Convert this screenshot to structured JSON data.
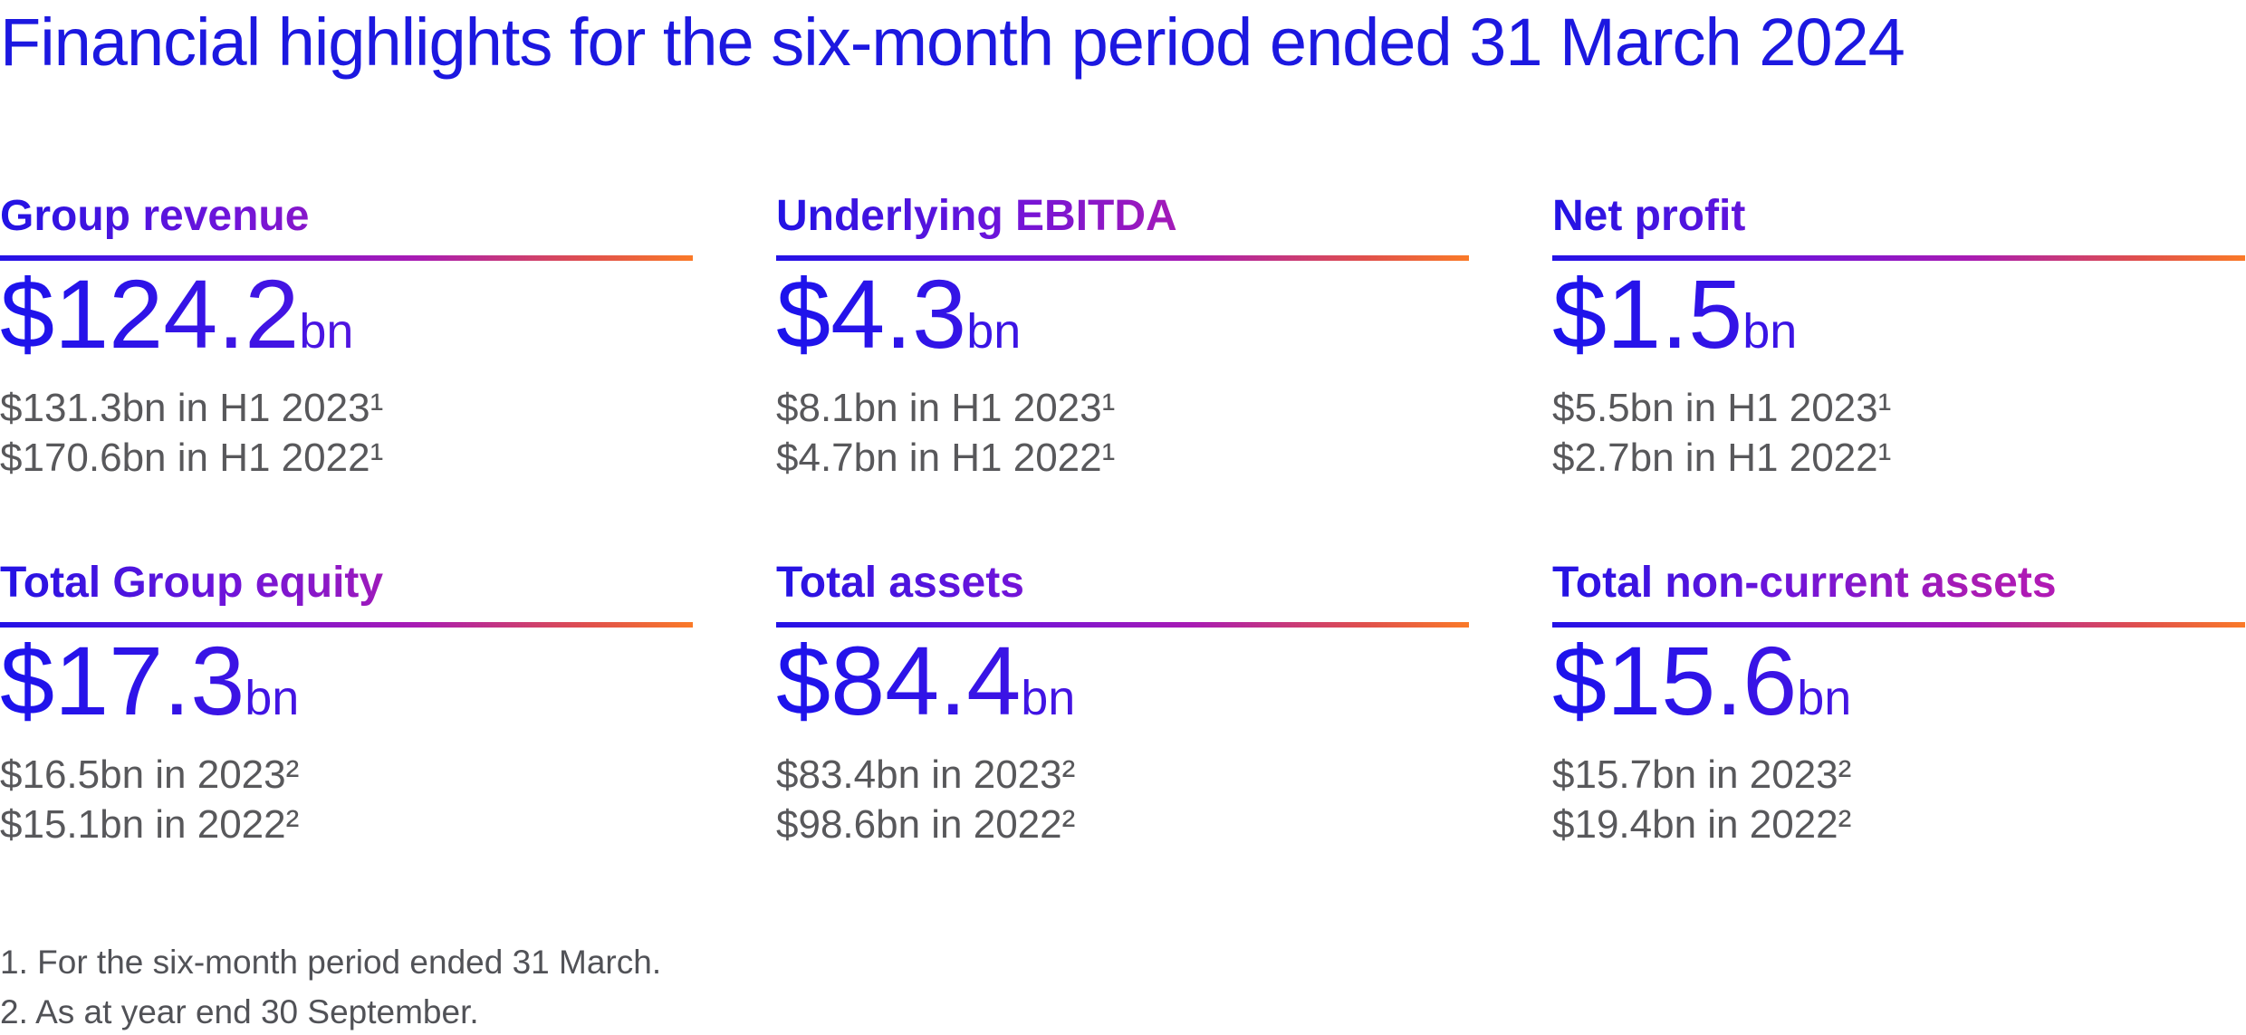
{
  "page_title": "Financial highlights for the six-month period ended 31 March 2024",
  "colors": {
    "title_blue": "#1c18e0",
    "gradient_blue": "#2113e4",
    "gradient_purple": "#7a18d6",
    "gradient_magenta": "#a81bb4",
    "gradient_orange": "#fa7a28",
    "comparison_gray": "#58585b",
    "footnote_gray": "#515257"
  },
  "cards": [
    {
      "heading": "Group revenue",
      "amount": "$124.2",
      "unit": "bn",
      "comparisons": [
        "$131.3bn in H1 2023¹",
        "$170.6bn in H1 2022¹"
      ]
    },
    {
      "heading": "Underlying EBITDA",
      "amount": "$4.3",
      "unit": "bn",
      "comparisons": [
        "$8.1bn in H1 2023¹",
        "$4.7bn in H1 2022¹"
      ]
    },
    {
      "heading": "Net profit",
      "amount": "$1.5",
      "unit": "bn",
      "comparisons": [
        "$5.5bn in H1 2023¹",
        "$2.7bn in H1 2022¹"
      ]
    },
    {
      "heading": "Total Group equity",
      "amount": "$17.3",
      "unit": "bn",
      "comparisons": [
        "$16.5bn in 2023²",
        "$15.1bn in 2022²"
      ]
    },
    {
      "heading": "Total assets",
      "amount": "$84.4",
      "unit": "bn",
      "comparisons": [
        "$83.4bn in 2023²",
        "$98.6bn in 2022²"
      ]
    },
    {
      "heading": "Total non-current assets",
      "amount": "$15.6",
      "unit": "bn",
      "comparisons": [
        "$15.7bn in 2023²",
        "$19.4bn in 2022²"
      ]
    }
  ],
  "footnotes": [
    "1. For the six-month period ended 31 March.",
    "2. As at year end 30 September."
  ]
}
